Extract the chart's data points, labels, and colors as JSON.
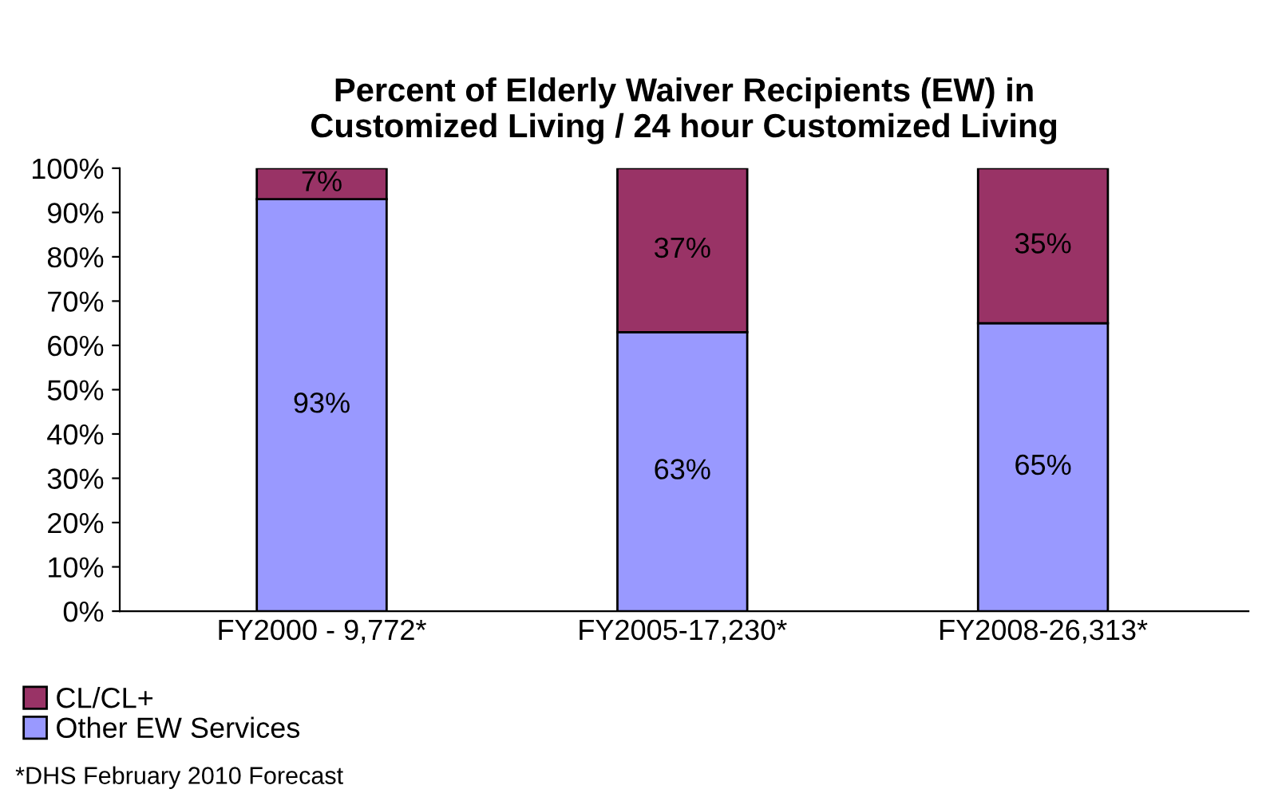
{
  "chart_data": {
    "type": "bar",
    "stacked": true,
    "title": "Percent of Elderly Waiver Recipients (EW) in\nCustomized Living / 24 hour Customized Living",
    "categories": [
      "FY2000 - 9,772*",
      "FY2005-17,230*",
      "FY2008-26,313*"
    ],
    "series": [
      {
        "name": "Other EW Services",
        "color": "#9999ff",
        "values": [
          93,
          63,
          65
        ],
        "value_labels": [
          "93%",
          "63%",
          "65%"
        ]
      },
      {
        "name": "CL/CL+",
        "color": "#993366",
        "values": [
          7,
          37,
          35
        ],
        "value_labels": [
          "7%",
          "37%",
          "35%"
        ]
      }
    ],
    "ylim": [
      0,
      100
    ],
    "yticks": [
      {
        "value": 0,
        "label": "0%"
      },
      {
        "value": 10,
        "label": "10%"
      },
      {
        "value": 20,
        "label": "20%"
      },
      {
        "value": 30,
        "label": "30%"
      },
      {
        "value": 40,
        "label": "40%"
      },
      {
        "value": 50,
        "label": "50%"
      },
      {
        "value": 60,
        "label": "60%"
      },
      {
        "value": 70,
        "label": "70%"
      },
      {
        "value": 80,
        "label": "80%"
      },
      {
        "value": 90,
        "label": "90%"
      },
      {
        "value": 100,
        "label": "100%"
      }
    ],
    "grid": false,
    "legend": "bottom left",
    "annotations": [
      "*DHS February 2010 Forecast"
    ]
  }
}
